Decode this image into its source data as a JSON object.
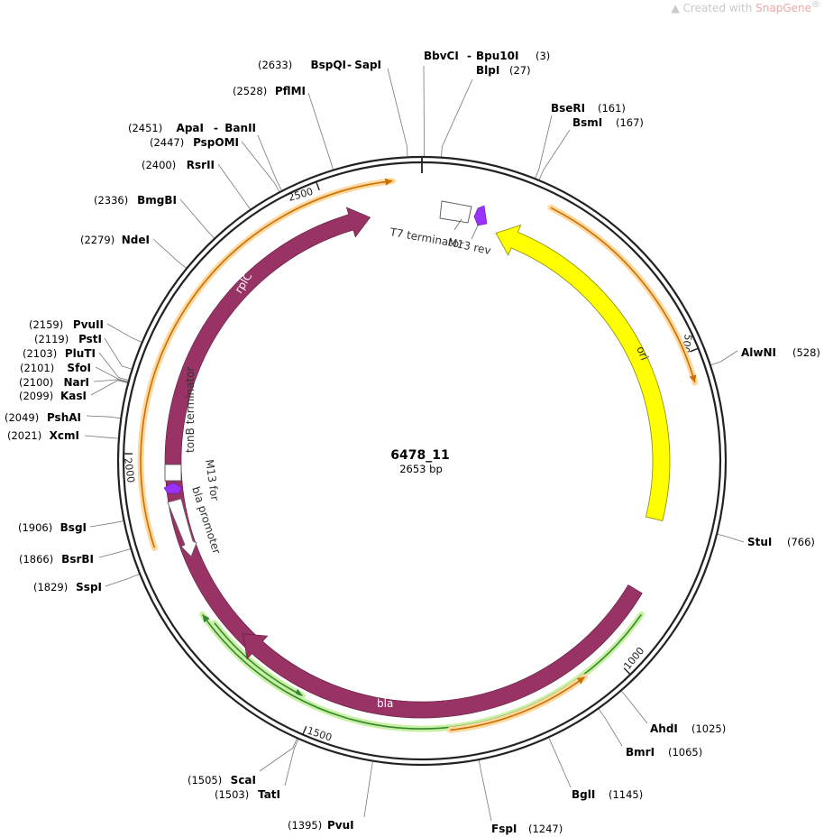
{
  "watermark": {
    "prefix": "Created with ",
    "brand": "SnapGene",
    "mark": "®"
  },
  "plasmid": {
    "name": "6478_11",
    "size_label": "2653 bp",
    "length": 2653
  },
  "ticks": [
    {
      "label": "500",
      "position": 500
    },
    {
      "label": "1000",
      "position": 1000
    },
    {
      "label": "1500",
      "position": 1500
    },
    {
      "label": "2000",
      "position": 2000
    },
    {
      "label": "2500",
      "position": 2500
    }
  ],
  "colors": {
    "backbone": "#222222",
    "rplC": "#993366",
    "bla": "#993366",
    "ori": "#ffff00",
    "m13": "#9933ff",
    "orf_line_orange": "#c87000",
    "orf_glow_orange": "#ffd8a0",
    "orf_line_green": "#338833",
    "orf_glow_green": "#c8f0a0"
  },
  "features": [
    {
      "key": "rplC",
      "label": "rplC",
      "type": "cds",
      "start": 2350,
      "end": 2580,
      "direction": "cw"
    },
    {
      "key": "bla",
      "label": "bla",
      "type": "cds",
      "start": 1195,
      "end": 1850,
      "direction": "cw"
    },
    {
      "key": "ori",
      "label": "ori",
      "type": "origin",
      "start": 160,
      "end": 750,
      "direction": "ccw"
    },
    {
      "key": "t7",
      "label": "T7 terminator",
      "type": "terminator"
    },
    {
      "key": "m13rev",
      "label": "M13 rev",
      "type": "primer"
    },
    {
      "key": "tonb",
      "label": "tonB terminator",
      "type": "terminator"
    },
    {
      "key": "m13for",
      "label": "M13 for",
      "type": "primer"
    },
    {
      "key": "blaprom",
      "label": "bla promoter",
      "type": "promoter"
    }
  ],
  "sites": [
    {
      "name": "BbvCI",
      "name2": "Bpu10I",
      "pos": "(3)",
      "bp": 3
    },
    {
      "name": "BlpI",
      "pos": "(27)",
      "bp": 27
    },
    {
      "name": "BseRI",
      "pos": "(161)",
      "bp": 161
    },
    {
      "name": "BsmI",
      "pos": "(167)",
      "bp": 167
    },
    {
      "name": "AlwNI",
      "pos": "(528)",
      "bp": 528
    },
    {
      "name": "StuI",
      "pos": "(766)",
      "bp": 766
    },
    {
      "name": "AhdI",
      "pos": "(1025)",
      "bp": 1025
    },
    {
      "name": "BmrI",
      "pos": "(1065)",
      "bp": 1065
    },
    {
      "name": "BglI",
      "pos": "(1145)",
      "bp": 1145
    },
    {
      "name": "FspI",
      "pos": "(1247)",
      "bp": 1247
    },
    {
      "name": "PvuI",
      "pos": "(1395)",
      "bp": 1395
    },
    {
      "name": "TatI",
      "pos": "(1503)",
      "bp": 1503
    },
    {
      "name": "ScaI",
      "pos": "(1505)",
      "bp": 1505
    },
    {
      "name": "SspI",
      "pos": "(1829)",
      "bp": 1829
    },
    {
      "name": "BsrBI",
      "pos": "(1866)",
      "bp": 1866
    },
    {
      "name": "BsgI",
      "pos": "(1906)",
      "bp": 1906
    },
    {
      "name": "XcmI",
      "pos": "(2021)",
      "bp": 2021
    },
    {
      "name": "PshAI",
      "pos": "(2049)",
      "bp": 2049
    },
    {
      "name": "KasI",
      "pos": "(2099)",
      "bp": 2099
    },
    {
      "name": "NarI",
      "pos": "(2100)",
      "bp": 2100
    },
    {
      "name": "SfoI",
      "pos": "(2101)",
      "bp": 2101
    },
    {
      "name": "PluTI",
      "pos": "(2103)",
      "bp": 2103
    },
    {
      "name": "PstI",
      "pos": "(2119)",
      "bp": 2119
    },
    {
      "name": "PvuII",
      "pos": "(2159)",
      "bp": 2159
    },
    {
      "name": "NdeI",
      "pos": "(2279)",
      "bp": 2279
    },
    {
      "name": "BmgBI",
      "pos": "(2336)",
      "bp": 2336
    },
    {
      "name": "RsrII",
      "pos": "(2400)",
      "bp": 2400
    },
    {
      "name": "PspOMI",
      "pos": "(2447)",
      "bp": 2447
    },
    {
      "name": "ApaI",
      "name2": "BanII",
      "pos": "(2451)",
      "bp": 2451
    },
    {
      "name": "PflMI",
      "pos": "(2528)",
      "bp": 2528
    },
    {
      "name": "BspQI",
      "name2": "SapI",
      "pos": "(2633)",
      "bp": 2633
    }
  ]
}
